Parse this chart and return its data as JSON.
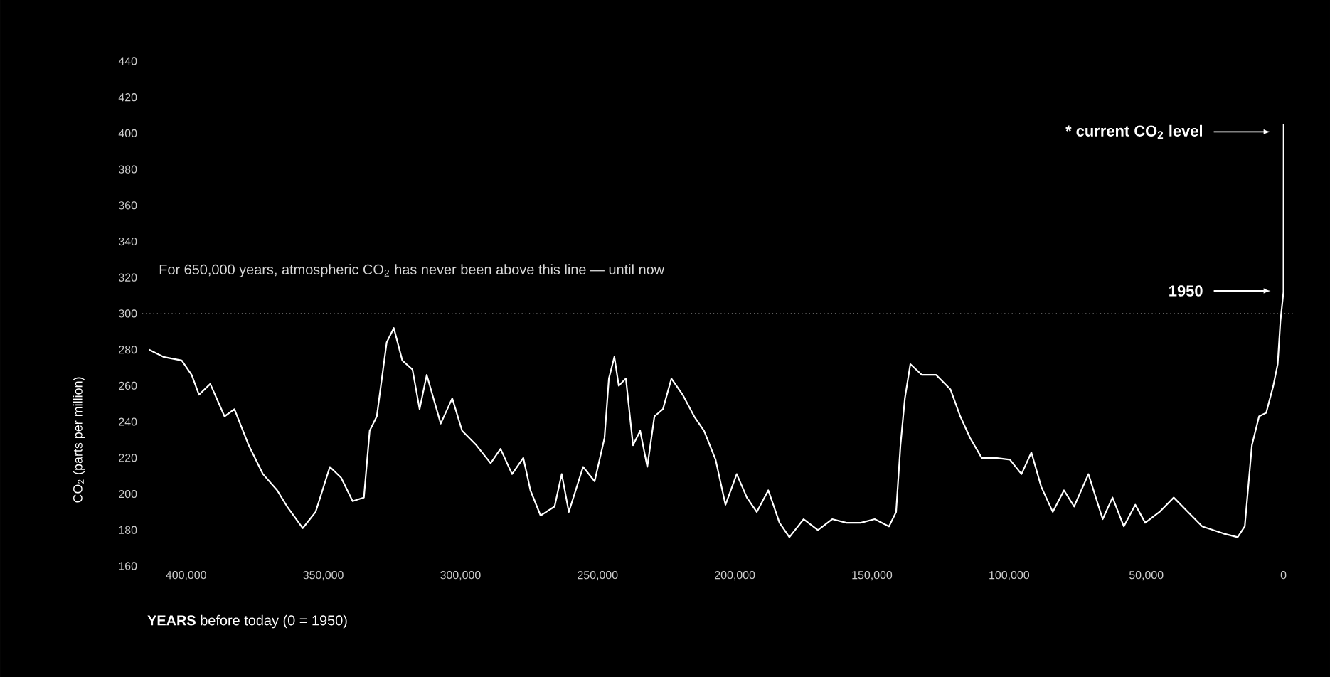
{
  "chart_data": {
    "type": "line",
    "xlabel": "**YEARS** before today (0 = 1950)",
    "ylabel": "CO$_{2}$ (parts per million)",
    "annotations": [
      "For 650,000 years, atmospheric CO$_{2}$ has never been above this line — until now",
      "* current CO$_{2}$ level",
      "1950"
    ],
    "series": [
      {
        "color": "#ffffff",
        "x": [
          413500,
          408300,
          401600,
          398000,
          395300,
          391200,
          386000,
          382400,
          377200,
          372000,
          366800,
          363200,
          357500,
          352800,
          347600,
          343500,
          339300,
          335200,
          333100,
          330500,
          326900,
          324300,
          321200,
          317500,
          314900,
          312300,
          307200,
          303000,
          299400,
          294200,
          289000,
          285400,
          281200,
          277100,
          274500,
          270800,
          265700,
          263100,
          260500,
          255300,
          251100,
          247500,
          245900,
          243900,
          242300,
          239700,
          237100,
          234500,
          231900,
          229300,
          226200,
          223100,
          219000,
          214800,
          211200,
          207000,
          203400,
          199300,
          195600,
          192000,
          187800,
          183700,
          180100,
          174900,
          169700,
          164500,
          159300,
          154100,
          149000,
          143800,
          141200,
          139600,
          138000,
          136000,
          131800,
          126600,
          121400,
          117800,
          114200,
          110000,
          104900,
          99700,
          95500,
          91900,
          88300,
          84100,
          80000,
          76300,
          71100,
          65900,
          62300,
          58200,
          54000,
          50400,
          45200,
          40000,
          34800,
          29600,
          21800,
          16700,
          14100,
          11500,
          8900,
          6300,
          3700,
          2100,
          1100,
          0,
          -60
        ],
        "values": [
          280,
          276,
          274,
          266,
          255,
          261,
          243,
          247,
          227,
          211,
          202,
          193,
          181,
          190,
          215,
          209,
          196,
          198,
          235,
          243,
          284,
          292,
          274,
          269,
          247,
          266,
          239,
          253,
          235,
          227,
          217,
          225,
          211,
          220,
          202,
          188,
          193,
          211,
          190,
          215,
          207,
          231,
          264,
          276,
          260,
          264,
          227,
          235,
          215,
          243,
          247,
          264,
          255,
          243,
          235,
          219,
          194,
          211,
          198,
          190,
          202,
          184,
          176,
          186,
          180,
          186,
          184,
          184,
          186,
          182,
          190,
          227,
          253,
          272,
          266,
          266,
          258,
          243,
          231,
          220,
          220,
          219,
          211,
          223,
          204,
          190,
          202,
          193,
          211,
          186,
          198,
          182,
          194,
          184,
          190,
          198,
          190,
          182,
          178,
          176,
          182,
          227,
          243,
          245,
          260,
          272,
          296,
          312,
          405
        ]
      }
    ],
    "xlim": [
      416000,
      -4000
    ],
    "ylim": [
      160,
      440
    ],
    "xticks": [
      {
        "value": 400000,
        "label": "400,000"
      },
      {
        "value": 350000,
        "label": "350,000"
      },
      {
        "value": 300000,
        "label": "300,000"
      },
      {
        "value": 250000,
        "label": "250,000"
      },
      {
        "value": 200000,
        "label": "200,000"
      },
      {
        "value": 150000,
        "label": "150,000"
      },
      {
        "value": 100000,
        "label": "100,000"
      },
      {
        "value": 50000,
        "label": "50,000"
      },
      0
    ],
    "yticks": [
      160,
      180,
      200,
      220,
      240,
      260,
      280,
      300,
      320,
      340,
      360,
      380,
      400,
      420,
      440
    ],
    "ref_lines": [
      {
        "axis": "y",
        "value": 300,
        "color": "#808080",
        "line_style": "dotted"
      }
    ],
    "grid": false
  }
}
